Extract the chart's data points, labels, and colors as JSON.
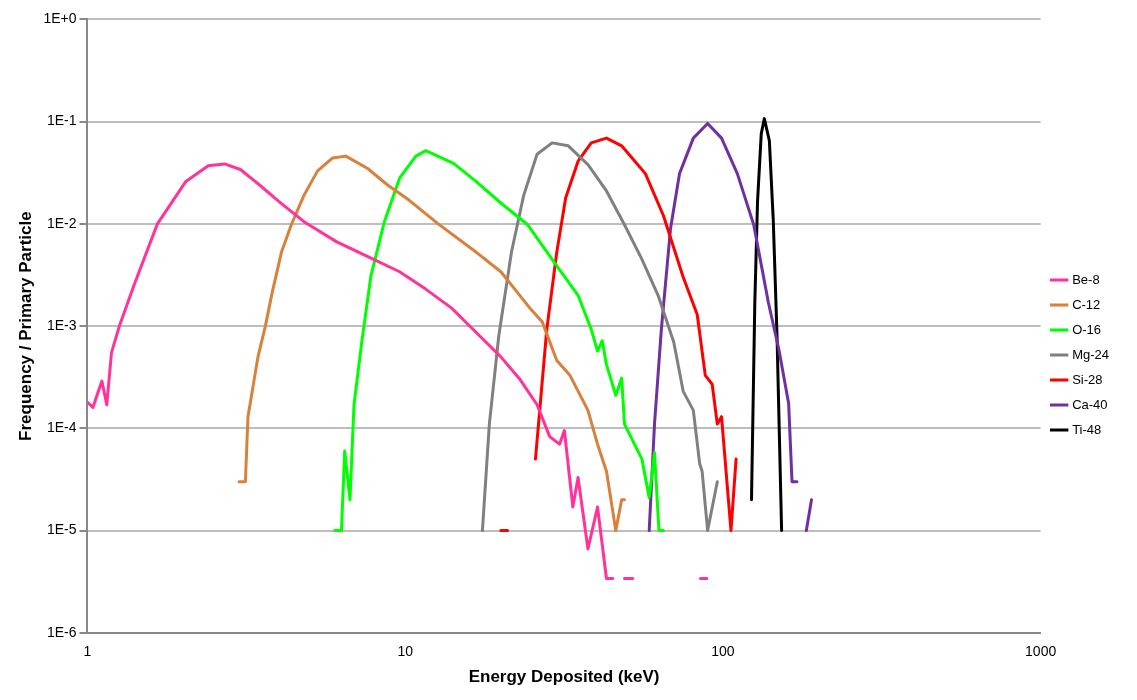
{
  "chart_data": {
    "type": "line",
    "xlabel": "Energy Deposited (keV)",
    "ylabel": "Frequency / Primary Particle",
    "log": "xy",
    "grid": "y",
    "legend": "right",
    "marker": "none",
    "line_style": "solid",
    "xlim": [
      1,
      1000
    ],
    "xticks": [
      1,
      10,
      100,
      1000
    ],
    "ylim": [
      1e-06,
      1
    ],
    "yticks": [
      {
        "value": 1e-06,
        "label": "1E-6"
      },
      {
        "value": 1e-05,
        "label": "1E-5"
      },
      {
        "value": 0.0001,
        "label": "1E-4"
      },
      {
        "value": 0.001,
        "label": "1E-3"
      },
      {
        "value": 0.01,
        "label": "1E-2"
      },
      {
        "value": 0.1,
        "label": "1E-1"
      },
      {
        "value": 1,
        "label": "1E+0"
      }
    ],
    "series": [
      {
        "name": "Be-8",
        "color": "#ff3399",
        "x": [
          1.0,
          1.04,
          1.11,
          1.15,
          1.19,
          1.26,
          1.4,
          1.66,
          2.04,
          2.4,
          2.7,
          3.03,
          3.48,
          4.0,
          4.8,
          6.07,
          7.6,
          9.6,
          11.6,
          14,
          16.7,
          20,
          23,
          26,
          28.5,
          30.6,
          31.7,
          33.7,
          35,
          37.6,
          40.3,
          43,
          45,
          47,
          49,
          52,
          70,
          85,
          89
        ],
        "values": [
          0.00018,
          0.00016,
          0.00029,
          0.00017,
          0.00055,
          0.001,
          0.0025,
          0.01,
          0.026,
          0.037,
          0.0386,
          0.034,
          0.024,
          0.0166,
          0.0105,
          0.0067,
          0.0048,
          0.0034,
          0.0023,
          0.0015,
          0.00087,
          0.0005,
          0.0003,
          0.00017,
          8.3e-05,
          7e-05,
          9.5e-05,
          1.7e-05,
          3.3e-05,
          6.6e-06,
          1.7e-05,
          3.4e-06,
          3.4e-06,
          null,
          3.4e-06,
          3.4e-06,
          null,
          3.4e-06,
          3.4e-06
        ]
      },
      {
        "name": "C-12",
        "color": "#d9803a",
        "x": [
          3.0,
          3.14,
          3.2,
          3.44,
          3.63,
          3.81,
          4.08,
          4.38,
          4.8,
          5.3,
          5.9,
          6.5,
          7.6,
          8.8,
          10.3,
          12.7,
          16.7,
          20,
          24.9,
          27,
          30,
          33,
          37.6,
          40.3,
          43,
          46,
          48,
          49
        ],
        "values": [
          3e-05,
          3e-05,
          0.00013,
          0.0005,
          0.001,
          0.0021,
          0.0053,
          0.0098,
          0.019,
          0.033,
          0.044,
          0.046,
          0.035,
          0.024,
          0.017,
          0.01,
          0.0053,
          0.0034,
          0.00145,
          0.0011,
          0.00046,
          0.00033,
          0.00015,
          7e-05,
          3.8e-05,
          1e-05,
          2e-05,
          2e-05
        ]
      },
      {
        "name": "O-16",
        "color": "#00ff00",
        "x": [
          6.0,
          6.3,
          6.45,
          6.7,
          6.9,
          7.3,
          7.8,
          8.6,
          9.6,
          10.8,
          11.6,
          14.2,
          16.7,
          20,
          24.3,
          29,
          35,
          38.5,
          40.3,
          41.7,
          43,
          46,
          48,
          49,
          55.6,
          58.6,
          60.9,
          62.9,
          65
        ],
        "values": [
          1e-05,
          1e-05,
          6e-05,
          2e-05,
          0.00017,
          0.0007,
          0.0031,
          0.0105,
          0.028,
          0.046,
          0.052,
          0.039,
          0.026,
          0.016,
          0.0098,
          0.0045,
          0.002,
          0.00093,
          0.00057,
          0.00072,
          0.00042,
          0.00021,
          0.00031,
          0.00011,
          5e-05,
          2.1e-05,
          5.8e-05,
          1e-05,
          1e-05
        ]
      },
      {
        "name": "Mg-24",
        "color": "#808080",
        "x": [
          17.5,
          18.4,
          19.7,
          21.6,
          23.6,
          26,
          29,
          32.6,
          37.6,
          43,
          49,
          55.6,
          62.5,
          70,
          75,
          80.7,
          84.5,
          86,
          89.5,
          96
        ],
        "values": [
          1e-05,
          0.00011,
          0.0008,
          0.0053,
          0.019,
          0.048,
          0.062,
          0.058,
          0.038,
          0.021,
          0.0098,
          0.0045,
          0.002,
          0.0007,
          0.00023,
          0.00015,
          4.5e-05,
          3.8e-05,
          1e-05,
          3e-05
        ]
      },
      {
        "name": "Si-28",
        "color": "#ff0000",
        "x": [
          20,
          21,
          23,
          25.7,
          27.9,
          30,
          32,
          35,
          38.5,
          43,
          48,
          57,
          65,
          75,
          83,
          88,
          92.5,
          96,
          99,
          106,
          110
        ],
        "values": [
          1e-05,
          1e-05,
          null,
          5e-05,
          0.00093,
          0.0053,
          0.018,
          0.041,
          0.062,
          0.069,
          0.058,
          0.031,
          0.012,
          0.003,
          0.0013,
          0.00033,
          0.00027,
          0.00011,
          0.00013,
          1e-05,
          5e-05
        ]
      },
      {
        "name": "Ca-40",
        "color": "#7030a0",
        "x": [
          58.6,
          60.9,
          64,
          68.4,
          73,
          80.7,
          89.5,
          99,
          111,
          125,
          139,
          150,
          161,
          165,
          171,
          177,
          183,
          190
        ],
        "values": [
          1e-05,
          0.00011,
          0.00093,
          0.009,
          0.031,
          0.069,
          0.096,
          0.069,
          0.031,
          0.0098,
          0.0017,
          0.00059,
          0.000175,
          3e-05,
          3e-05,
          null,
          1e-05,
          2e-05
        ]
      },
      {
        "name": "Ti-48",
        "color": "#000000",
        "x": [
          123,
          126,
          128.5,
          132,
          135,
          140,
          144,
          148,
          153
        ],
        "values": [
          2e-05,
          0.0017,
          0.0165,
          0.076,
          0.107,
          0.065,
          0.011,
          0.0008,
          1e-05
        ]
      }
    ]
  }
}
